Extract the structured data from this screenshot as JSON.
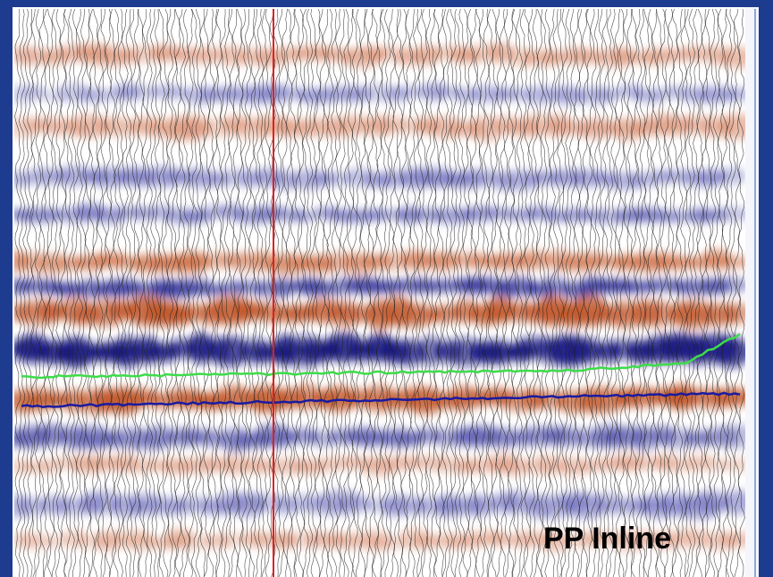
{
  "label": "PP Inline"
}
